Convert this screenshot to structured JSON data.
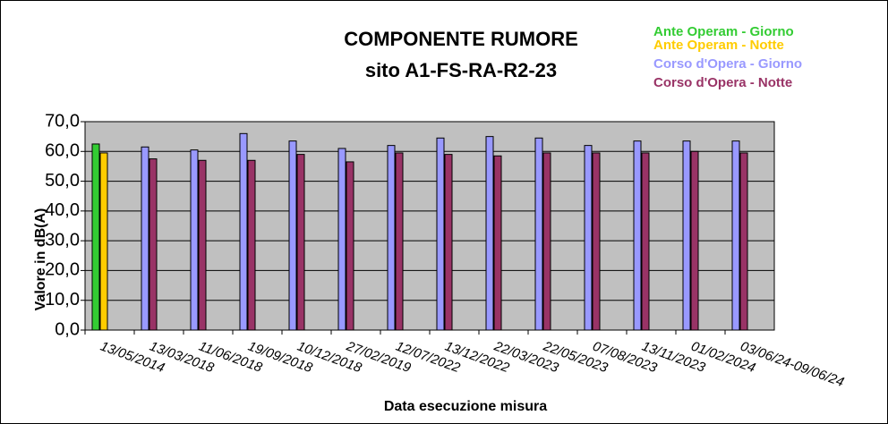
{
  "chart_data": {
    "type": "bar",
    "title": "COMPONENTE RUMORE",
    "subtitle": "sito A1-FS-RA-R2-23",
    "x_label": "Data esecuzione misura",
    "y_label": "Valore in dB(A)",
    "categories": [
      "13/05/2014",
      "13/03/2018",
      "11/06/2018",
      "19/09/2018",
      "10/12/2018",
      "27/02/2019",
      "12/07/2022",
      "13/12/2022",
      "22/03/2023",
      "22/05/2023",
      "07/08/2023",
      "13/11/2023",
      "01/02/2024",
      "03/06/24-09/06/24"
    ],
    "series": [
      {
        "name": "Ante Operam - Giorno",
        "color": "#33cc33",
        "values": [
          62.5,
          null,
          null,
          null,
          null,
          null,
          null,
          null,
          null,
          null,
          null,
          null,
          null,
          null
        ]
      },
      {
        "name": "Ante Operam - Notte",
        "color": "#ffcc00",
        "values": [
          59.5,
          null,
          null,
          null,
          null,
          null,
          null,
          null,
          null,
          null,
          null,
          null,
          null,
          null
        ]
      },
      {
        "name": "Corso  d'Opera - Giorno",
        "color": "#9999ff",
        "values": [
          null,
          61.5,
          60.5,
          66,
          63.5,
          61,
          62,
          64.5,
          65,
          64.5,
          62,
          63.5,
          63.5,
          63.5
        ]
      },
      {
        "name": "Corso d'Opera - Notte",
        "color": "#993366",
        "values": [
          null,
          57.5,
          57,
          57,
          59,
          56.5,
          59.5,
          59,
          58.5,
          59.5,
          59.5,
          59.5,
          60,
          59.5
        ]
      }
    ],
    "ylim": [
      0,
      70
    ],
    "yticks": [
      {
        "value": 0,
        "label": "0,0"
      },
      {
        "value": 10,
        "label": "10,0"
      },
      {
        "value": 20,
        "label": "20,0"
      },
      {
        "value": 30,
        "label": "30,0"
      },
      {
        "value": 40,
        "label": "40,0"
      },
      {
        "value": 50,
        "label": "50,0"
      },
      {
        "value": 60,
        "label": "60,0"
      },
      {
        "value": 70,
        "label": "70,0"
      }
    ],
    "grid": true
  }
}
